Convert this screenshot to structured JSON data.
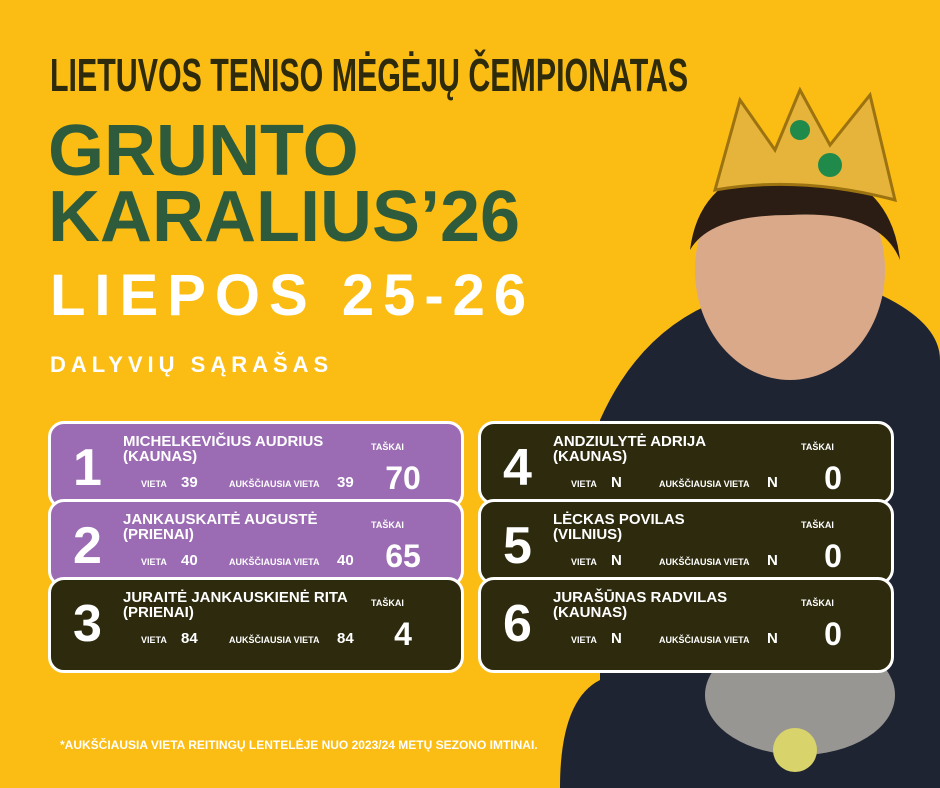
{
  "header": {
    "title": "LIETUVOS TENISO MĖGĖJŲ ČEMPIONATAS",
    "event_line1": "GRUNTO",
    "event_line2": "KARALIUS’26",
    "dates": "LIEPOS 25-26",
    "list_title": "DALYVIŲ SĄRAŠAS"
  },
  "labels": {
    "points": "TAŠKAI",
    "rank": "VIETA",
    "best_rank": "AUKŠČIAUSIA VIETA"
  },
  "cards": [
    {
      "place": "1",
      "name": "MICHELKEVIČIUS AUDRIUS",
      "city": "(KAUNAS)",
      "rank": "39",
      "best_rank": "39",
      "points": "70"
    },
    {
      "place": "2",
      "name": "JANKAUSKAITĖ AUGUSTĖ",
      "city": "(PRIENAI)",
      "rank": "40",
      "best_rank": "40",
      "points": "65"
    },
    {
      "place": "3",
      "name": "JURAITĖ JANKAUSKIENĖ RITA",
      "city": "(PRIENAI)",
      "rank": "84",
      "best_rank": "84",
      "points": "4"
    },
    {
      "place": "4",
      "name": "ANDZIULYTĖ ADRIJA",
      "city": "(KAUNAS)",
      "rank": "N",
      "best_rank": "N",
      "points": "0"
    },
    {
      "place": "5",
      "name": "LĖCKAS POVILAS",
      "city": "(VILNIUS)",
      "rank": "N",
      "best_rank": "N",
      "points": "0"
    },
    {
      "place": "6",
      "name": "JURAŠŪNAS RADVILAS",
      "city": "(KAUNAS)",
      "rank": "N",
      "best_rank": "N",
      "points": "0"
    }
  ],
  "footer": {
    "note": "*AUKŠČIAUSIA VIETA REITINGŲ LENTELĖJE NUO 2023/24 METŲ SEZONO IMTINAI."
  }
}
